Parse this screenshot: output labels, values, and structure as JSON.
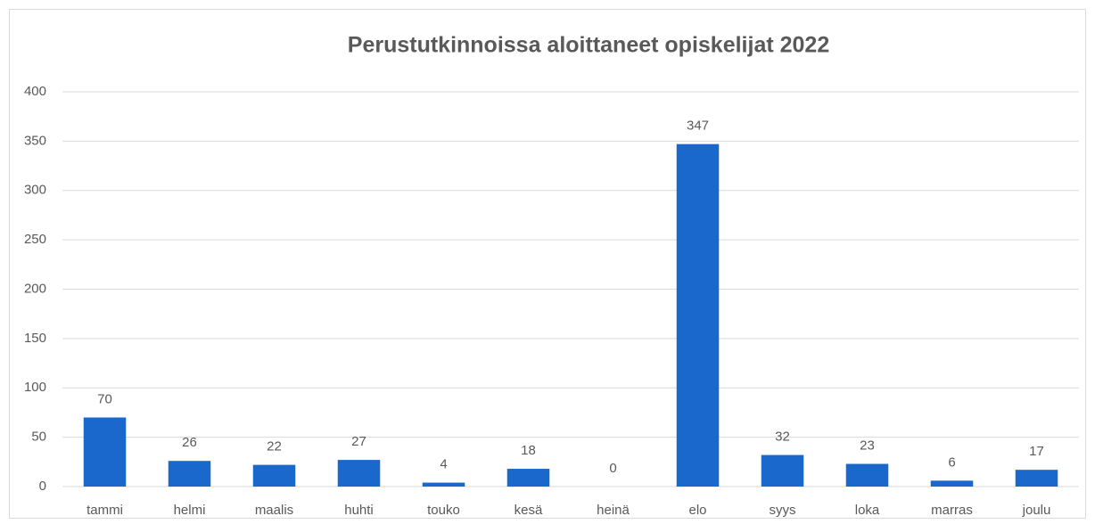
{
  "chart_data": {
    "type": "bar",
    "title": "Perustutkinnoissa aloittaneet opiskelijat 2022",
    "categories": [
      "tammi",
      "helmi",
      "maalis",
      "huhti",
      "touko",
      "kesä",
      "heinä",
      "elo",
      "syys",
      "loka",
      "marras",
      "joulu"
    ],
    "values": [
      70,
      26,
      22,
      27,
      4,
      18,
      0,
      347,
      32,
      23,
      6,
      17
    ],
    "color": "#1a68cc",
    "ylim": [
      0,
      400
    ],
    "yticks": [
      0,
      50,
      100,
      150,
      200,
      250,
      300,
      350,
      400
    ],
    "grid": true
  }
}
